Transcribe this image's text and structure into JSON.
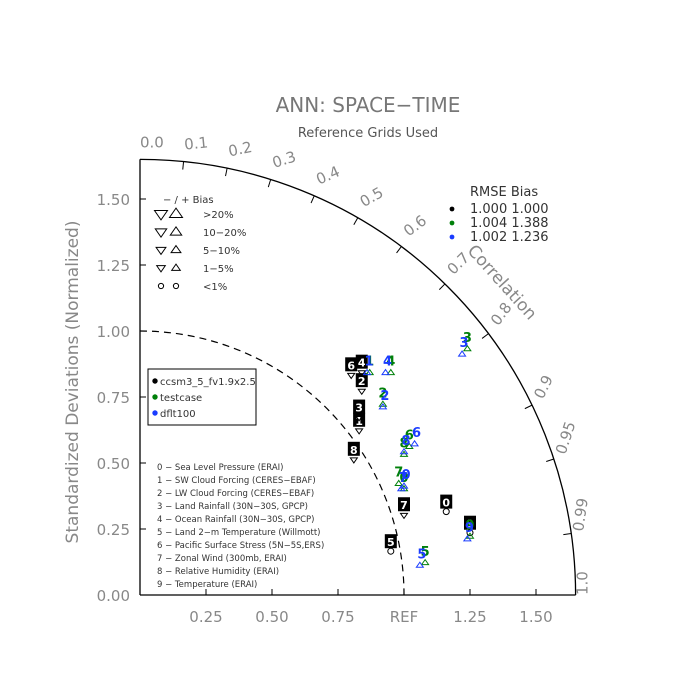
{
  "chart_data": {
    "type": "taylor",
    "title": "ANN: SPACE−TIME",
    "subtitle": "Reference Grids Used",
    "ylabel": "Standardized Deviations (Normalized)",
    "correlation_label": "Correlation",
    "std_range": [
      0,
      1.65
    ],
    "std_ticks": [
      "0.00",
      "0.25",
      "0.50",
      "0.75",
      "REF",
      "1.25",
      "1.50"
    ],
    "y_ticks": [
      "0.00",
      "0.25",
      "0.50",
      "0.75",
      "1.00",
      "1.25",
      "1.50"
    ],
    "corr_ticks": [
      "0.0",
      "0.1",
      "0.2",
      "0.3",
      "0.4",
      "0.5",
      "0.6",
      "0.7",
      "0.8",
      "0.9",
      "0.95",
      "0.99",
      "1.0"
    ],
    "bias_legend": {
      "header": "− / +      Bias",
      "rows": [
        {
          "label": ">20%",
          "size": 1.0
        },
        {
          "label": "10−20%",
          "size": 0.8
        },
        {
          "label": "5−10%",
          "size": 0.6
        },
        {
          "label": "1−5%",
          "size": 0.45
        },
        {
          "label": "<1%",
          "size": 0.45,
          "circle": true
        }
      ]
    },
    "rmse_legend": {
      "header": "RMSE  Bias",
      "rows": [
        {
          "text": "1.000 1.000",
          "color": "#000000"
        },
        {
          "text": "1.004 1.388",
          "color": "#00800a"
        },
        {
          "text": "1.002 1.236",
          "color": "#1a3cff"
        }
      ]
    },
    "cases": [
      {
        "name": "ccsm3_5_fv1.9x2.5",
        "color": "#000000"
      },
      {
        "name": "testcase",
        "color": "#00800a"
      },
      {
        "name": "dflt100",
        "color": "#1a3cff"
      }
    ],
    "variables": [
      "0 − Sea Level Pressure (ERAI)",
      "1 − SW Cloud Forcing (CERES−EBAF)",
      "2 − LW Cloud Forcing (CERES−EBAF)",
      "3 − Land Rainfall (30N−30S, GPCP)",
      "4 − Ocean Rainfall (30N−30S, GPCP)",
      "5 − Land 2−m Temperature (Willmott)",
      "6 − Pacific Surface Stress (5N−5S,ERS)",
      "7 − Zonal Wind (300mb, ERAI)",
      "8 − Relative Humidity (ERAI)",
      "9 − Temperature (ERAI)"
    ],
    "series": [
      {
        "name": "ccsm3_5_fv1.9x2.5",
        "color": "#000000",
        "points": [
          {
            "id": "0",
            "x": 1.16,
            "y": 0.35,
            "marker": "circle"
          },
          {
            "id": "1",
            "x": 0.83,
            "y": 0.66,
            "marker": "down"
          },
          {
            "id": "2",
            "x": 0.84,
            "y": 0.81,
            "marker": "down"
          },
          {
            "id": "3",
            "x": 0.83,
            "y": 0.71,
            "marker": "down"
          },
          {
            "id": "4",
            "x": 0.84,
            "y": 0.88,
            "marker": "down"
          },
          {
            "id": "5",
            "x": 0.95,
            "y": 0.2,
            "marker": "circle"
          },
          {
            "id": "6",
            "x": 0.8,
            "y": 0.87,
            "marker": "down"
          },
          {
            "id": "7",
            "x": 1.0,
            "y": 0.34,
            "marker": "down"
          },
          {
            "id": "8",
            "x": 0.81,
            "y": 0.55,
            "marker": "down"
          },
          {
            "id": "9",
            "x": 1.25,
            "y": 0.27,
            "marker": "circle"
          }
        ]
      },
      {
        "name": "testcase",
        "color": "#00800a",
        "points": [
          {
            "id": "0",
            "x": 1.0,
            "y": 0.44,
            "marker": "up"
          },
          {
            "id": "1",
            "x": 0.87,
            "y": 0.88,
            "marker": "up"
          },
          {
            "id": "2",
            "x": 0.92,
            "y": 0.76,
            "marker": "up"
          },
          {
            "id": "3",
            "x": 1.24,
            "y": 0.97,
            "marker": "up"
          },
          {
            "id": "4",
            "x": 0.95,
            "y": 0.88,
            "marker": "up"
          },
          {
            "id": "5",
            "x": 1.08,
            "y": 0.16,
            "marker": "up"
          },
          {
            "id": "6",
            "x": 1.02,
            "y": 0.6,
            "marker": "up"
          },
          {
            "id": "7",
            "x": 0.98,
            "y": 0.46,
            "marker": "up"
          },
          {
            "id": "8",
            "x": 1.0,
            "y": 0.57,
            "marker": "up"
          },
          {
            "id": "9",
            "x": 1.25,
            "y": 0.26,
            "marker": "up"
          }
        ]
      },
      {
        "name": "dflt100",
        "color": "#1a3cff",
        "points": [
          {
            "id": "0",
            "x": 1.0,
            "y": 0.45,
            "marker": "up"
          },
          {
            "id": "1",
            "x": 0.86,
            "y": 0.88,
            "marker": "up"
          },
          {
            "id": "2",
            "x": 0.92,
            "y": 0.75,
            "marker": "up"
          },
          {
            "id": "3",
            "x": 1.22,
            "y": 0.95,
            "marker": "up"
          },
          {
            "id": "4",
            "x": 0.93,
            "y": 0.88,
            "marker": "up"
          },
          {
            "id": "5",
            "x": 1.06,
            "y": 0.15,
            "marker": "up"
          },
          {
            "id": "6",
            "x": 1.04,
            "y": 0.61,
            "marker": "up"
          },
          {
            "id": "7",
            "x": 0.99,
            "y": 0.44,
            "marker": "up"
          },
          {
            "id": "8",
            "x": 1.0,
            "y": 0.58,
            "marker": "up"
          },
          {
            "id": "9",
            "x": 1.24,
            "y": 0.25,
            "marker": "up"
          }
        ]
      }
    ]
  }
}
